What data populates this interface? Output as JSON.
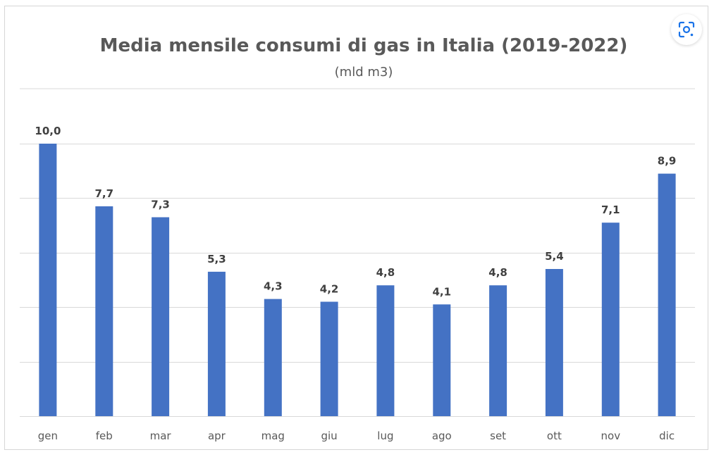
{
  "chart_data": {
    "type": "bar",
    "title": "Media mensile consumi di gas in Italia (2019-2022)",
    "subtitle": "(mld m3)",
    "categories": [
      "gen",
      "feb",
      "mar",
      "apr",
      "mag",
      "giu",
      "lug",
      "ago",
      "set",
      "ott",
      "nov",
      "dic"
    ],
    "values": [
      10.0,
      7.7,
      7.3,
      5.3,
      4.3,
      4.2,
      4.8,
      4.1,
      4.8,
      5.4,
      7.1,
      8.9
    ],
    "value_labels": [
      "10,0",
      "7,7",
      "7,3",
      "5,3",
      "4,3",
      "4,2",
      "4,8",
      "4,1",
      "4,8",
      "5,4",
      "7,1",
      "8,9"
    ],
    "xlabel": "",
    "ylabel": "",
    "ylim": [
      0,
      12
    ],
    "gridline_step": 2,
    "grid": true,
    "y_tick_labels_visible": false,
    "legend": "none",
    "bar_color": "#4472c4",
    "grid_color": "#d9d9d9"
  },
  "toolbar": {
    "lens_icon": "lens-search-icon"
  }
}
